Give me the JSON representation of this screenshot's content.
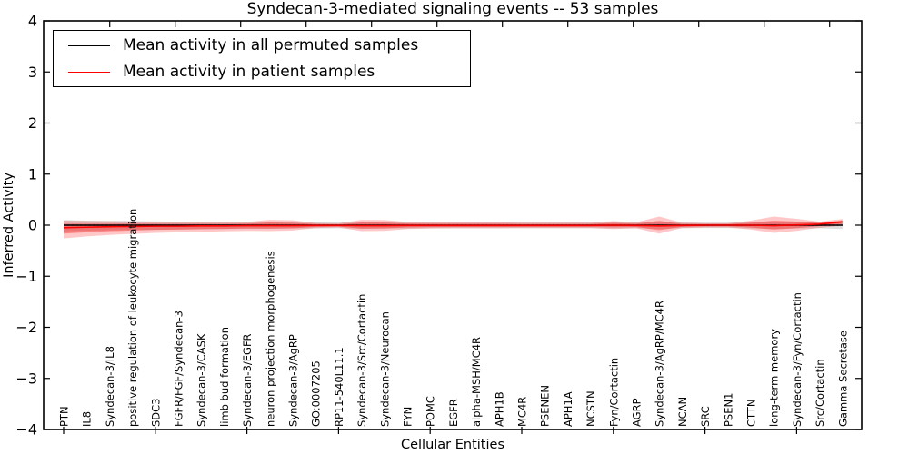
{
  "chart_data": {
    "type": "line",
    "title": "Syndecan-3-mediated signaling events -- 53 samples",
    "xlabel": "Cellular Entities",
    "ylabel": "Inferred Activity",
    "ylim": [
      -4,
      4
    ],
    "yticks": [
      4,
      3,
      2,
      1,
      0,
      -1,
      -2,
      -3,
      -4
    ],
    "grid": false,
    "legend": [
      "Mean activity in all permuted samples",
      "Mean activity in patient samples"
    ],
    "legend_position": "upper left",
    "colors": {
      "permuted_line": "#000000",
      "patient_line": "#ff0000",
      "patient_band": "#ff0000",
      "permuted_band": "#999999",
      "zero_dotted_line": "#000000"
    },
    "categories": [
      "PTN",
      "IL8",
      "Syndecan-3/IL8",
      "positive regulation of leukocyte migration",
      "SDC3",
      "FGFR/FGF/Syndecan-3",
      "Syndecan-3/CASK",
      "limb bud formation",
      "Syndecan-3/EGFR",
      "neuron projection morphogenesis",
      "Syndecan-3/AgRP",
      "GO:0007205",
      "RP11-540L11.1",
      "Syndecan-3/Src/Cortactin",
      "Syndecan-3/Neurocan",
      "FYN",
      "POMC",
      "EGFR",
      "alpha-MSH/MC4R",
      "APH1B",
      "MC4R",
      "PSENEN",
      "APH1A",
      "NCSTN",
      "Fyn/Cortactin",
      "AGRP",
      "Syndecan-3/AgRP/MC4R",
      "NCAN",
      "SRC",
      "PSEN1",
      "CTTN",
      "long-term memory",
      "Syndecan-3/Fyn/Cortactin",
      "Src/Cortactin",
      "Gamma Secretase"
    ],
    "series": [
      {
        "name": "Mean activity in all permuted samples",
        "values": [
          0,
          0,
          0,
          0,
          0,
          0,
          0,
          0,
          0,
          0,
          0,
          0,
          0,
          0,
          0,
          0,
          0,
          0,
          0,
          0,
          0,
          0,
          0,
          0,
          0,
          0,
          0,
          0,
          0,
          0,
          0,
          0,
          0,
          0,
          0
        ]
      },
      {
        "name": "Mean activity in patient samples",
        "values": [
          -0.05,
          -0.04,
          -0.03,
          -0.025,
          -0.02,
          -0.02,
          -0.015,
          -0.015,
          -0.01,
          -0.01,
          -0.01,
          -0.005,
          -0.005,
          -0.01,
          -0.01,
          -0.005,
          -0.005,
          -0.005,
          -0.005,
          -0.005,
          -0.005,
          -0.005,
          -0.005,
          -0.005,
          0,
          -0.005,
          -0.015,
          -0.005,
          0,
          0,
          0,
          -0.01,
          0.005,
          0.02,
          0.065
        ]
      },
      {
        "name": "patient band upper",
        "values": [
          0.09,
          0.08,
          0.075,
          0.075,
          0.065,
          0.065,
          0.06,
          0.055,
          0.065,
          0.105,
          0.095,
          0.045,
          0.035,
          0.105,
          0.1,
          0.065,
          0.055,
          0.055,
          0.055,
          0.055,
          0.05,
          0.05,
          0.05,
          0.05,
          0.08,
          0.055,
          0.17,
          0.05,
          0.04,
          0.04,
          0.09,
          0.17,
          0.125,
          0.07,
          0.12
        ]
      },
      {
        "name": "patient band lower",
        "values": [
          -0.26,
          -0.22,
          -0.19,
          -0.17,
          -0.15,
          -0.14,
          -0.13,
          -0.12,
          -0.11,
          -0.115,
          -0.105,
          -0.055,
          -0.045,
          -0.115,
          -0.11,
          -0.075,
          -0.065,
          -0.06,
          -0.06,
          -0.06,
          -0.055,
          -0.055,
          -0.055,
          -0.055,
          -0.075,
          -0.06,
          -0.165,
          -0.055,
          -0.045,
          -0.045,
          -0.085,
          -0.15,
          -0.11,
          -0.05,
          -0.01
        ]
      },
      {
        "name": "permuted band upper",
        "values": [
          0.1,
          0.09,
          0.085,
          0.08,
          0.075,
          0.07,
          0.065,
          0.065,
          0.06,
          0.06,
          0.06,
          0.055,
          0.055,
          0.06,
          0.06,
          0.055,
          0.055,
          0.055,
          0.055,
          0.055,
          0.055,
          0.055,
          0.055,
          0.055,
          0.06,
          0.055,
          0.065,
          0.055,
          0.05,
          0.05,
          0.06,
          0.065,
          0.06,
          0.055,
          0.07
        ]
      },
      {
        "name": "permuted band lower",
        "values": [
          -0.12,
          -0.11,
          -0.1,
          -0.095,
          -0.09,
          -0.085,
          -0.08,
          -0.075,
          -0.07,
          -0.07,
          -0.065,
          -0.065,
          -0.06,
          -0.07,
          -0.065,
          -0.065,
          -0.06,
          -0.06,
          -0.06,
          -0.06,
          -0.06,
          -0.06,
          -0.06,
          -0.06,
          -0.065,
          -0.06,
          -0.07,
          -0.06,
          -0.055,
          -0.055,
          -0.065,
          -0.07,
          -0.065,
          -0.06,
          -0.075
        ]
      }
    ]
  }
}
